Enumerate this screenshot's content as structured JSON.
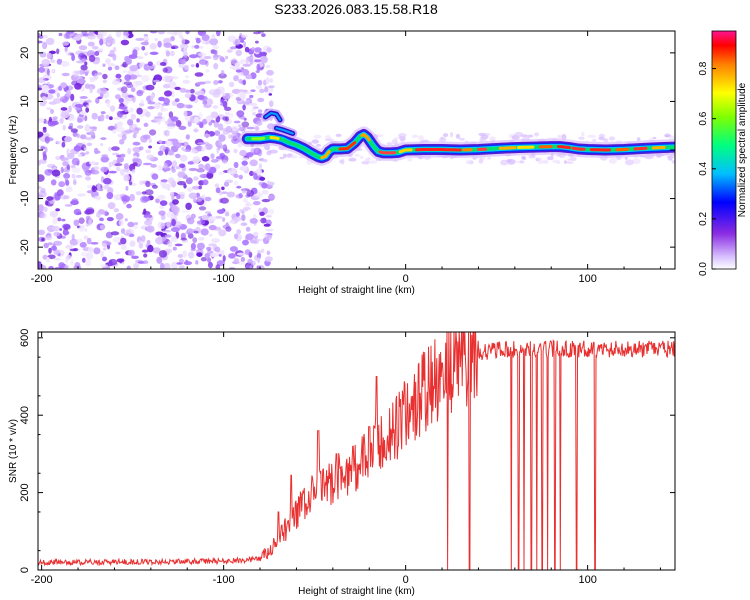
{
  "title": "S233.2026.083.15.58.R18",
  "chart_data": [
    {
      "type": "heatmap",
      "title": "S233.2026.083.15.58.R18",
      "xlabel": "Height of straight line (km)",
      "ylabel": "Frequency (Hz)",
      "xlim": [
        -202,
        148
      ],
      "ylim": [
        -24.5,
        24.5
      ],
      "xticks": [
        "-200",
        "-100",
        "0",
        "100"
      ],
      "yticks": [
        "20",
        "10",
        "0",
        "-10",
        "-20"
      ],
      "noise_region_x": [
        -202,
        -79
      ],
      "ridge": {
        "x": [
          -87,
          -80,
          -75,
          -72,
          -68,
          -64,
          -60,
          -56,
          -52,
          -48,
          -46,
          -44,
          -42,
          -40,
          -36,
          -32,
          -28,
          -25,
          -23,
          -21,
          -19,
          -17,
          -15,
          -12,
          -8,
          -4,
          0,
          10,
          20,
          30,
          40,
          50,
          60,
          70,
          80,
          85,
          90,
          95,
          100,
          110,
          120,
          130,
          140,
          148
        ],
        "y": [
          2.3,
          2.3,
          2.6,
          2.5,
          2.2,
          1.5,
          1.0,
          0.3,
          -0.6,
          -1.4,
          -1.6,
          -1.3,
          -0.3,
          0.2,
          0.2,
          0.3,
          1.5,
          2.8,
          3.2,
          2.6,
          1.5,
          0.5,
          -0.3,
          -0.6,
          -0.6,
          -0.5,
          0.0,
          0.1,
          0.1,
          0.0,
          0.1,
          0.3,
          0.5,
          0.6,
          0.7,
          0.7,
          0.5,
          0.2,
          0.1,
          0.0,
          0.1,
          0.3,
          0.5,
          0.6
        ]
      },
      "branches": [
        {
          "x": [
            -77,
            -74,
            -71,
            -69
          ],
          "y": [
            6.8,
            7.6,
            7.4,
            6.2
          ]
        },
        {
          "x": [
            -71,
            -68,
            -65,
            -62
          ],
          "y": [
            4.5,
            4.2,
            3.8,
            3.4
          ]
        }
      ],
      "colorbar": {
        "label": "Normalized spectral amplitude",
        "range": [
          0,
          0.95
        ],
        "ticks": [
          "0.0",
          "0.2",
          "0.4",
          "0.6",
          "0.8"
        ]
      }
    },
    {
      "type": "line",
      "xlabel": "Height of straight line (km)",
      "ylabel": "SNR (10 * v/v)",
      "xlim": [
        -202,
        148
      ],
      "ylim": [
        0,
        615
      ],
      "xticks": [
        "-200",
        "-100",
        "0",
        "100"
      ],
      "yticks": [
        "600",
        "400",
        "200",
        "0"
      ],
      "color": "#e83030",
      "series": [
        {
          "name": "SNR",
          "x": [
            -202,
            -180,
            -160,
            -140,
            -120,
            -100,
            -90,
            -80,
            -75,
            -70,
            -65,
            -60,
            -55,
            -50,
            -45,
            -40,
            -35,
            -30,
            -25,
            -20,
            -15,
            -10,
            -5,
            0,
            5,
            10,
            15,
            20,
            25,
            30,
            35,
            40,
            45,
            50,
            60,
            70,
            80,
            90,
            100,
            110,
            120,
            130,
            140,
            148
          ],
          "y": [
            20,
            20,
            21,
            21,
            22,
            23,
            25,
            30,
            45,
            75,
            110,
            145,
            175,
            200,
            215,
            230,
            245,
            260,
            275,
            295,
            320,
            340,
            370,
            400,
            430,
            460,
            480,
            500,
            525,
            545,
            555,
            560,
            565,
            568,
            570,
            570,
            572,
            570,
            572,
            570,
            572,
            570,
            572,
            570
          ]
        }
      ],
      "spikes": [
        {
          "x": -70,
          "y": 150
        },
        {
          "x": -63,
          "y": 245
        },
        {
          "x": -48,
          "y": 360
        },
        {
          "x": -38,
          "y": 300
        },
        {
          "x": -29,
          "y": 320
        },
        {
          "x": -20,
          "y": 370
        },
        {
          "x": -16,
          "y": 500
        },
        {
          "x": 20,
          "y": 535
        }
      ],
      "dropouts": [
        23,
        35,
        58,
        62,
        65,
        69,
        72,
        75,
        78,
        82,
        85,
        94,
        104
      ]
    }
  ]
}
